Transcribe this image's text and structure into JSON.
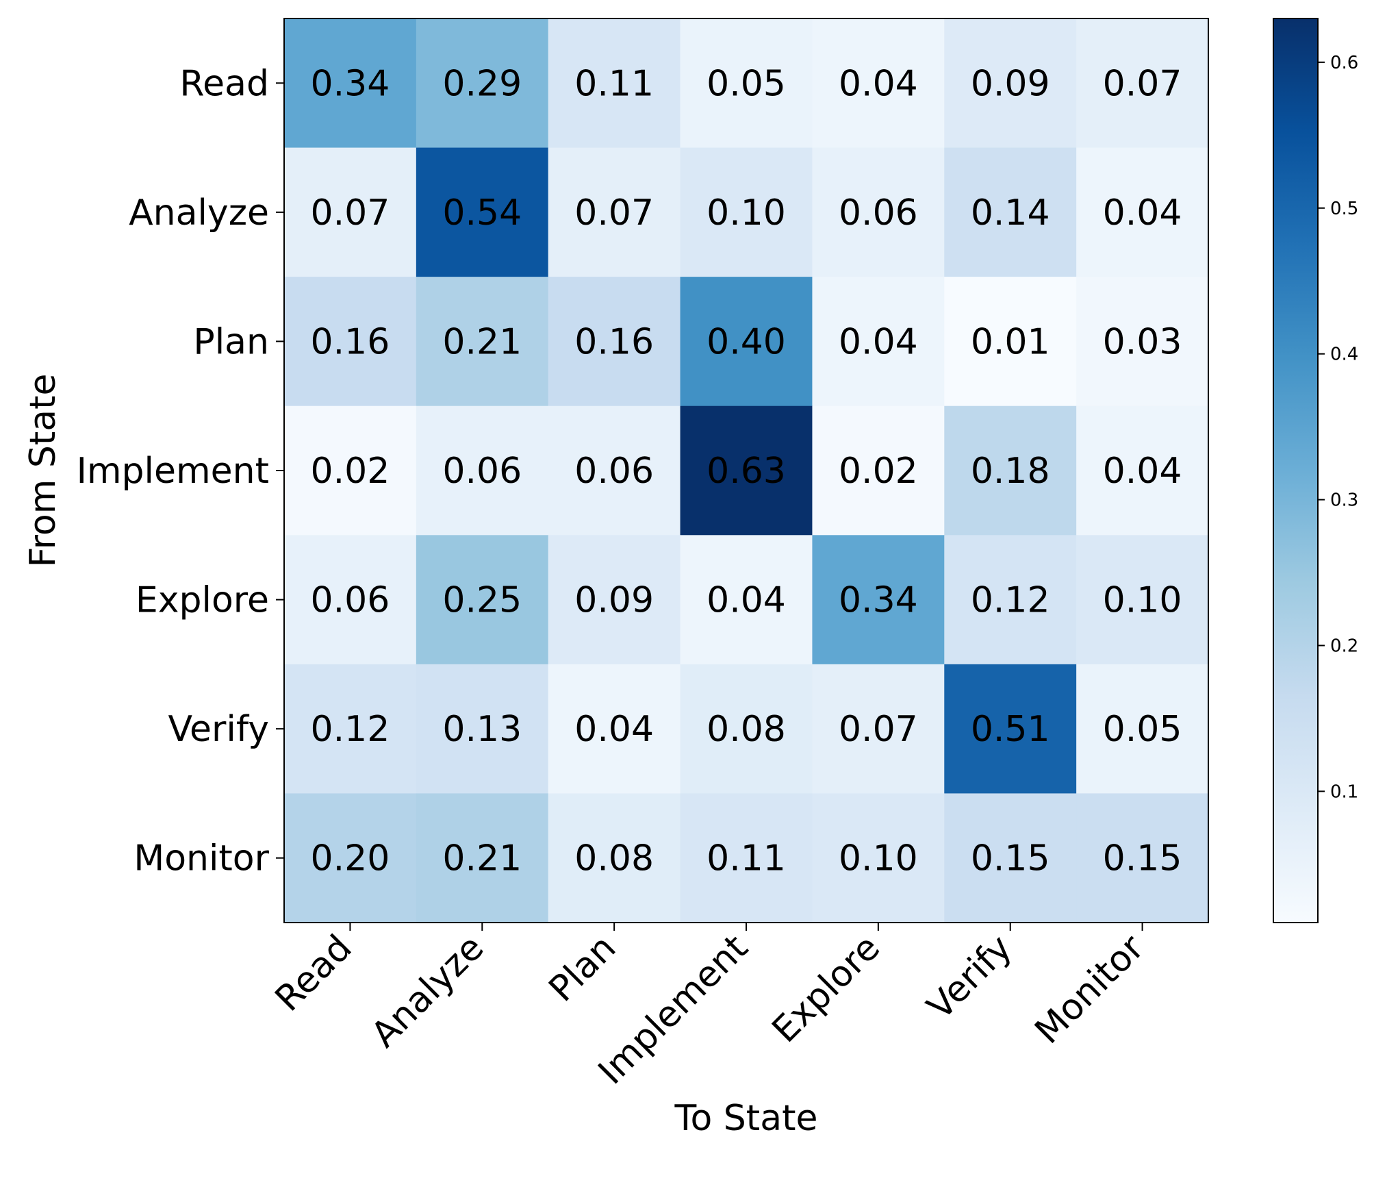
{
  "chart_data": {
    "type": "heatmap",
    "xlabel": "To State",
    "ylabel": "From State",
    "x_categories": [
      "Read",
      "Analyze",
      "Plan",
      "Implement",
      "Explore",
      "Verify",
      "Monitor"
    ],
    "y_categories": [
      "Read",
      "Analyze",
      "Plan",
      "Implement",
      "Explore",
      "Verify",
      "Monitor"
    ],
    "values": [
      [
        0.34,
        0.29,
        0.11,
        0.05,
        0.04,
        0.09,
        0.07
      ],
      [
        0.07,
        0.54,
        0.07,
        0.1,
        0.06,
        0.14,
        0.04
      ],
      [
        0.16,
        0.21,
        0.16,
        0.4,
        0.04,
        0.01,
        0.03
      ],
      [
        0.02,
        0.06,
        0.06,
        0.63,
        0.02,
        0.18,
        0.04
      ],
      [
        0.06,
        0.25,
        0.09,
        0.04,
        0.34,
        0.12,
        0.1
      ],
      [
        0.12,
        0.13,
        0.04,
        0.08,
        0.07,
        0.51,
        0.05
      ],
      [
        0.2,
        0.21,
        0.08,
        0.11,
        0.1,
        0.15,
        0.15
      ]
    ],
    "value_format": "0.00",
    "colormap": "Blues",
    "colorbar": {
      "range": [
        0.01,
        0.63
      ],
      "ticks": [
        0.1,
        0.2,
        0.3,
        0.4,
        0.5,
        0.6
      ],
      "tick_labels": [
        "0.1",
        "0.2",
        "0.3",
        "0.4",
        "0.5",
        "0.6"
      ]
    }
  }
}
